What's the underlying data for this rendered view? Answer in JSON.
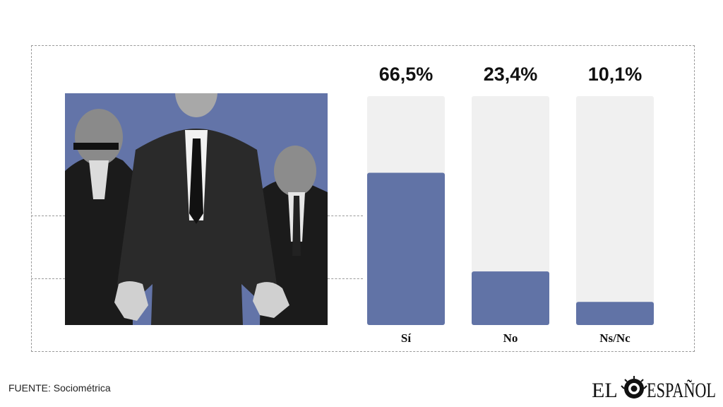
{
  "chart_data": {
    "type": "bar",
    "categories": [
      "Sí",
      "No",
      "Ns/Nc"
    ],
    "values": [
      66.5,
      23.4,
      10.1
    ],
    "value_labels": [
      "66,5%",
      "23,4%",
      "10,1%"
    ],
    "ylim": [
      0,
      100
    ],
    "title": "",
    "xlabel": "",
    "ylabel": "",
    "grid": false,
    "legend": "none"
  },
  "colors": {
    "bar": "#6173a6",
    "track": "#f0f0f0",
    "photo_bg": "#6374a8"
  },
  "footer": {
    "source": "FUENTE: Sociométrica"
  },
  "logo": {
    "left": "EL",
    "right": "ESPAÑOL",
    "icon": "lion-icon"
  },
  "photo": {
    "icon": "people-photo-icon"
  }
}
